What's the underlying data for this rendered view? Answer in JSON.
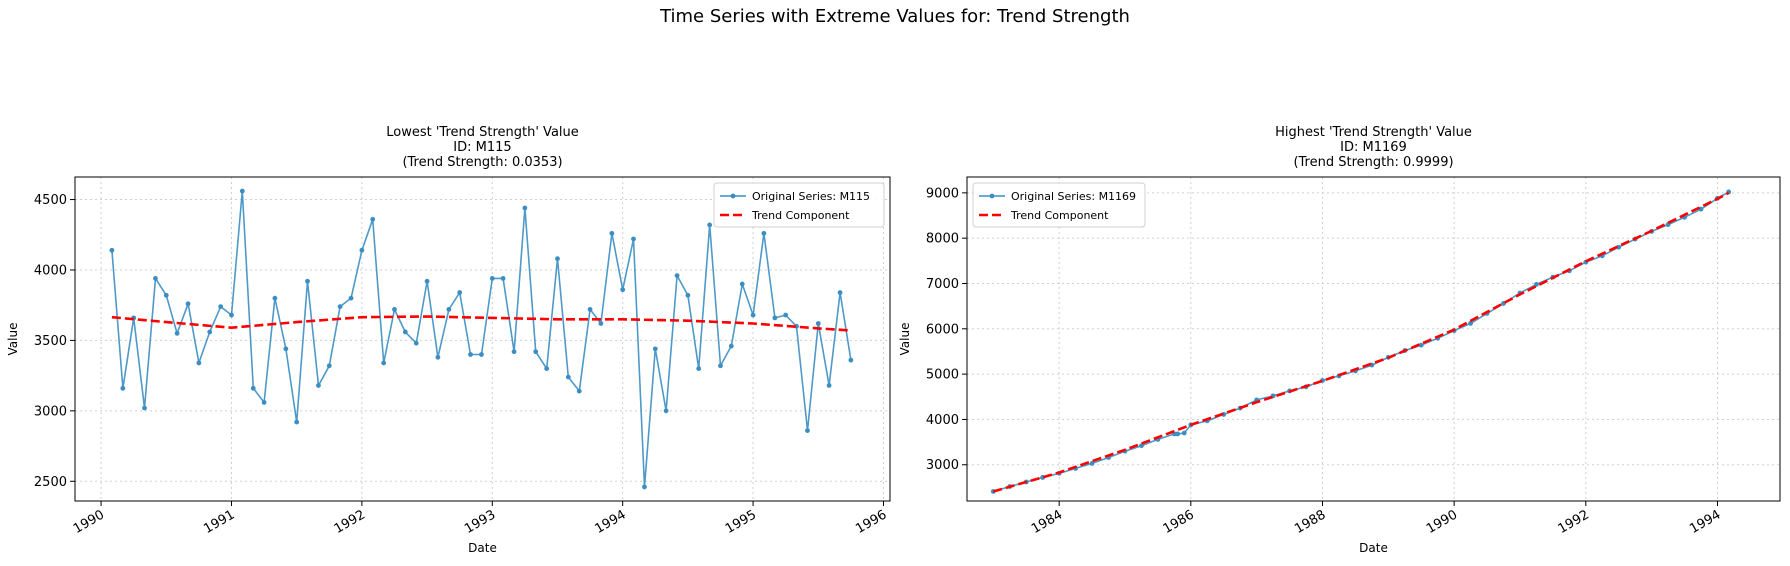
{
  "suptitle": "Time Series with Extreme Values for: Trend Strength",
  "colors": {
    "series": "#3b8ec2",
    "trend": "#ff0000",
    "grid": "#cfcfcf"
  },
  "chart_data": [
    {
      "type": "line",
      "title_lines": [
        "Lowest 'Trend Strength' Value",
        "ID: M115",
        "(Trend Strength: 0.0353)"
      ],
      "xlabel": "Date",
      "ylabel": "Value",
      "xlim": [
        1989.8,
        1996.05
      ],
      "ylim": [
        2360,
        4660
      ],
      "xticks": [
        1990,
        1991,
        1992,
        1993,
        1994,
        1995,
        1996
      ],
      "yticks": [
        2500,
        3000,
        3500,
        4000,
        4500
      ],
      "grid": true,
      "legend_position": "top-right",
      "series": [
        {
          "name": "Original Series: M115",
          "style": "line-marker",
          "x": [
            1990.083,
            1990.167,
            1990.25,
            1990.333,
            1990.417,
            1990.5,
            1990.583,
            1990.667,
            1990.75,
            1990.833,
            1990.917,
            1991.0,
            1991.083,
            1991.167,
            1991.25,
            1991.333,
            1991.417,
            1991.5,
            1991.583,
            1991.667,
            1991.75,
            1991.833,
            1991.917,
            1992.0,
            1992.083,
            1992.167,
            1992.25,
            1992.333,
            1992.417,
            1992.5,
            1992.583,
            1992.667,
            1992.75,
            1992.833,
            1992.917,
            1993.0,
            1993.083,
            1993.167,
            1993.25,
            1993.333,
            1993.417,
            1993.5,
            1993.583,
            1993.667,
            1993.75,
            1993.833,
            1993.917,
            1994.0,
            1994.083,
            1994.167,
            1994.25,
            1994.333,
            1994.417,
            1994.5,
            1994.583,
            1994.667,
            1994.75,
            1994.833,
            1994.917,
            1995.0,
            1995.083,
            1995.167,
            1995.25,
            1995.333,
            1995.417,
            1995.5,
            1995.583,
            1995.667,
            1995.75
          ],
          "values": [
            4140,
            3160,
            3660,
            3020,
            3940,
            3820,
            3550,
            3760,
            3340,
            3560,
            3740,
            3680,
            4560,
            3160,
            3060,
            3800,
            3440,
            2920,
            3920,
            3180,
            3320,
            3740,
            3800,
            4140,
            4360,
            3340,
            3720,
            3560,
            3480,
            3920,
            3380,
            3720,
            3840,
            3400,
            3400,
            3940,
            3940,
            3420,
            4440,
            3420,
            3300,
            4080,
            3240,
            3140,
            3720,
            3620,
            4260,
            3860,
            4220,
            2460,
            3440,
            3000,
            3960,
            3820,
            3300,
            4320,
            3320,
            3460,
            3900,
            3680,
            4260,
            3660,
            3680,
            3600,
            2860,
            3620,
            3180,
            3840,
            3360
          ]
        },
        {
          "name": "Trend Component",
          "style": "dashed",
          "x": [
            1990.083,
            1990.5,
            1991.0,
            1991.5,
            1992.0,
            1992.5,
            1993.0,
            1993.5,
            1994.0,
            1994.5,
            1995.0,
            1995.5,
            1995.75
          ],
          "values": [
            3665,
            3630,
            3590,
            3630,
            3665,
            3670,
            3660,
            3650,
            3650,
            3640,
            3620,
            3585,
            3570
          ]
        }
      ]
    },
    {
      "type": "line",
      "title_lines": [
        "Highest 'Trend Strength' Value",
        "ID: M1169",
        "(Trend Strength: 0.9999)"
      ],
      "xlabel": "Date",
      "ylabel": "Value",
      "xlim": [
        1982.6,
        1994.95
      ],
      "ylim": [
        2200,
        9350
      ],
      "xticks": [
        1984,
        1986,
        1988,
        1990,
        1992,
        1994
      ],
      "yticks": [
        3000,
        4000,
        5000,
        6000,
        7000,
        8000,
        9000
      ],
      "grid": true,
      "legend_position": "top-left",
      "series": [
        {
          "name": "Original Series: M1169",
          "style": "line-marker",
          "x": [
            1983.0,
            1983.25,
            1983.5,
            1983.75,
            1984.0,
            1984.25,
            1984.5,
            1984.75,
            1985.0,
            1985.25,
            1985.5,
            1985.75,
            1985.8,
            1985.9,
            1986.0,
            1986.25,
            1986.5,
            1986.75,
            1987.0,
            1987.25,
            1987.5,
            1987.75,
            1988.0,
            1988.25,
            1988.5,
            1988.75,
            1989.0,
            1989.25,
            1989.5,
            1989.75,
            1990.0,
            1990.25,
            1990.5,
            1990.75,
            1991.0,
            1991.25,
            1991.5,
            1991.75,
            1992.0,
            1992.25,
            1992.5,
            1992.75,
            1993.0,
            1993.25,
            1993.5,
            1993.75,
            1994.0,
            1994.17
          ],
          "values": [
            2410,
            2520,
            2620,
            2720,
            2810,
            2920,
            3030,
            3160,
            3300,
            3420,
            3560,
            3680,
            3680,
            3700,
            3880,
            3970,
            4110,
            4250,
            4430,
            4520,
            4630,
            4720,
            4860,
            4960,
            5070,
            5200,
            5370,
            5520,
            5640,
            5790,
            5960,
            6120,
            6340,
            6560,
            6790,
            6980,
            7140,
            7280,
            7470,
            7610,
            7800,
            7980,
            8150,
            8300,
            8460,
            8640,
            8880,
            9020
          ]
        },
        {
          "name": "Trend Component",
          "style": "dashed",
          "x": [
            1983.0,
            1984.0,
            1985.0,
            1986.0,
            1987.0,
            1988.0,
            1989.0,
            1990.0,
            1991.0,
            1992.0,
            1993.0,
            1994.0,
            1994.17
          ],
          "values": [
            2410,
            2830,
            3330,
            3880,
            4380,
            4850,
            5360,
            5980,
            6760,
            7490,
            8160,
            8870,
            9000
          ]
        }
      ]
    }
  ]
}
